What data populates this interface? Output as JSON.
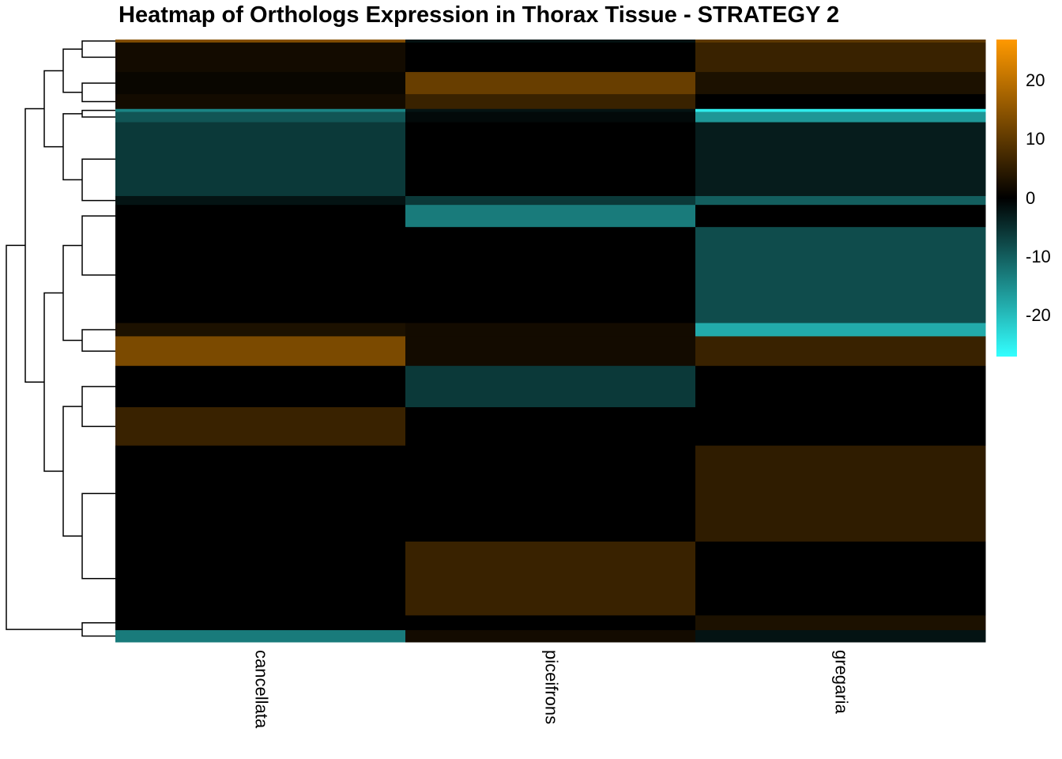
{
  "chart_data": {
    "type": "heatmap",
    "title": "Heatmap of Orthologs Expression in Thorax Tissue - STRATEGY 2",
    "columns": [
      "cancellata",
      "piceifrons",
      "gregaria"
    ],
    "value_range": [
      -27,
      27
    ],
    "legend": {
      "position": "right",
      "ticks": [
        20,
        10,
        0,
        -10,
        -20
      ],
      "colors": {
        "low": "#33ffff",
        "mid": "#000000",
        "high": "#ff9900"
      }
    },
    "row_clusters": [
      {
        "rows": 4,
        "values": [
          14,
          -2,
          10
        ]
      },
      {
        "rows": 40,
        "values": [
          2,
          0,
          6
        ]
      },
      {
        "rows": 30,
        "values": [
          1,
          11,
          3
        ]
      },
      {
        "rows": 20,
        "values": [
          2,
          6,
          0
        ]
      },
      {
        "rows": 4,
        "values": [
          -14,
          -2,
          -25
        ]
      },
      {
        "rows": 14,
        "values": [
          -9,
          -1,
          -16
        ]
      },
      {
        "rows": 100,
        "values": [
          -6,
          0,
          -3
        ]
      },
      {
        "rows": 12,
        "values": [
          -2,
          -6,
          -10
        ]
      },
      {
        "rows": 30,
        "values": [
          0,
          -13,
          0
        ]
      },
      {
        "rows": 130,
        "values": [
          0,
          0,
          -8
        ]
      },
      {
        "rows": 18,
        "values": [
          3,
          2,
          -18
        ]
      },
      {
        "rows": 40,
        "values": [
          13,
          2,
          6
        ]
      },
      {
        "rows": 56,
        "values": [
          0,
          -6,
          0
        ]
      },
      {
        "rows": 52,
        "values": [
          6,
          0,
          0
        ]
      },
      {
        "rows": 130,
        "values": [
          0,
          0,
          5
        ]
      },
      {
        "rows": 100,
        "values": [
          0,
          6,
          0
        ]
      },
      {
        "rows": 20,
        "values": [
          0,
          0,
          3
        ]
      },
      {
        "rows": 16,
        "values": [
          -13,
          2,
          -2
        ]
      }
    ]
  }
}
